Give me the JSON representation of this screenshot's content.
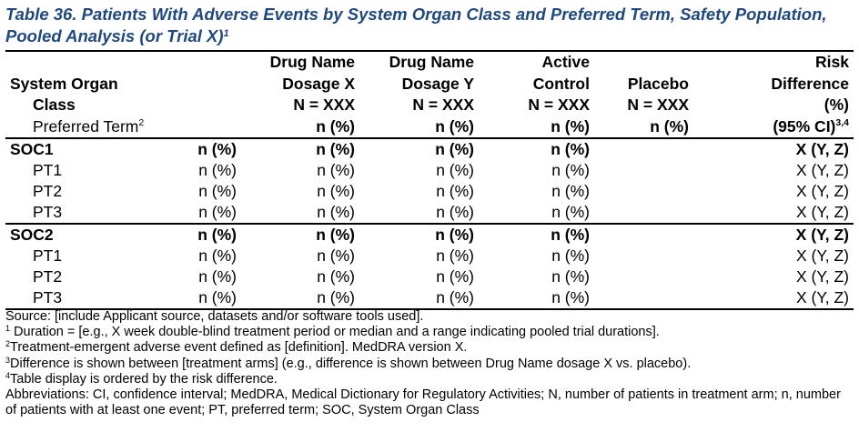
{
  "title": {
    "text": "Table 36. Patients With Adverse Events by System Organ Class and Preferred Term, Safety Population, Pooled Analysis (or Trial X)",
    "sup": "1"
  },
  "header": {
    "soc_line1": "System Organ",
    "soc_line2": "Class",
    "pt_label": "Preferred Term",
    "pt_sup": "2",
    "col_a": [
      "Drug Name",
      "Dosage X",
      "N = XXX",
      "n (%)"
    ],
    "col_b": [
      "Drug Name",
      "Dosage Y",
      "N = XXX",
      "n (%)"
    ],
    "col_c": [
      "Active",
      "Control",
      "N = XXX",
      "n (%)"
    ],
    "col_d": [
      "Placebo",
      "N = XXX",
      "n (%)"
    ],
    "col_e": [
      "Risk",
      "Difference",
      "(%)",
      "(95% CI)"
    ],
    "col_e_sup": "3,4"
  },
  "rows": [
    {
      "type": "soc",
      "label": "SOC1",
      "cells": [
        "n (%)",
        "n (%)",
        "n (%)",
        "n (%)",
        "",
        "X (Y, Z)"
      ]
    },
    {
      "type": "pt",
      "label": "PT1",
      "cells": [
        "n (%)",
        "n (%)",
        "n (%)",
        "n (%)",
        "",
        "X (Y, Z)"
      ]
    },
    {
      "type": "pt",
      "label": "PT2",
      "cells": [
        "n (%)",
        "n (%)",
        "n (%)",
        "n (%)",
        "",
        "X (Y, Z)"
      ]
    },
    {
      "type": "pt",
      "label": "PT3",
      "cells": [
        "n (%)",
        "n (%)",
        "n (%)",
        "n (%)",
        "",
        "X (Y, Z)"
      ]
    },
    {
      "type": "soc",
      "label": "SOC2",
      "cells": [
        "n (%)",
        "n (%)",
        "n (%)",
        "n (%)",
        "",
        "X (Y, Z)"
      ]
    },
    {
      "type": "pt",
      "label": "PT1",
      "cells": [
        "n (%)",
        "n (%)",
        "n (%)",
        "n (%)",
        "",
        "X (Y, Z)"
      ]
    },
    {
      "type": "pt",
      "label": "PT2",
      "cells": [
        "n (%)",
        "n (%)",
        "n (%)",
        "n (%)",
        "",
        "X (Y, Z)"
      ]
    },
    {
      "type": "pt",
      "label": "PT3",
      "cells": [
        "n (%)",
        "n (%)",
        "n (%)",
        "n (%)",
        "",
        "X (Y, Z)"
      ]
    }
  ],
  "footnotes": {
    "source": "Source: [include Applicant source, datasets and/or software tools used].",
    "fn1_sup": "1",
    "fn1": "Duration = [e.g., X week double-blind treatment period or median and a range indicating pooled trial durations].",
    "fn2_sup": "2",
    "fn2": "Treatment-emergent adverse event defined as [definition]. MedDRA version X.",
    "fn3_sup": "3",
    "fn3": "Difference is shown between [treatment arms] (e.g., difference is shown between Drug Name dosage X vs. placebo).",
    "fn4_sup": "4",
    "fn4": "Table display is ordered by the risk difference.",
    "abbreviations": "Abbreviations: CI, confidence interval; MedDRA, Medical Dictionary for Regulatory Activities; N, number of patients in treatment arm; n, number of patients with at least one event; PT, preferred term; SOC, System Organ Class"
  }
}
